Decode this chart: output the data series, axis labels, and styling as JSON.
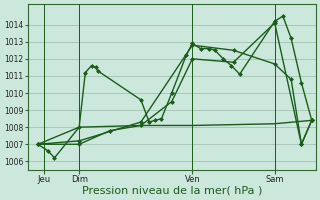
{
  "bg_color": "#cce8dd",
  "grid_color": "#99bbaa",
  "line_color": "#1a5c1a",
  "marker_color": "#1a5c1a",
  "xlabel": "Pression niveau de la mer( hPa )",
  "xlabel_fontsize": 8,
  "ylim": [
    1005.5,
    1015.2
  ],
  "yticks": [
    1006,
    1007,
    1008,
    1009,
    1010,
    1011,
    1012,
    1013,
    1014
  ],
  "xlim": [
    -0.5,
    13.5
  ],
  "day_ticks": [
    0.3,
    2.0,
    7.5,
    11.5
  ],
  "day_labels": [
    "Jeu",
    "Dim",
    "Ven",
    "Sam"
  ],
  "vline_positions": [
    0.3,
    2.0,
    7.5,
    11.5
  ],
  "series1": {
    "x": [
      0.0,
      0.5,
      0.8,
      2.0,
      2.3,
      2.6,
      2.8,
      2.9,
      5.0,
      5.4,
      5.7,
      6.0,
      6.5,
      7.2,
      7.5,
      7.9,
      8.3,
      8.6,
      9.0,
      9.4,
      9.8,
      11.5,
      11.9,
      12.3,
      12.8,
      13.3
    ],
    "y": [
      1007.0,
      1006.6,
      1006.2,
      1008.0,
      1011.2,
      1011.6,
      1011.5,
      1011.3,
      1009.6,
      1008.3,
      1008.4,
      1008.5,
      1010.0,
      1012.2,
      1012.9,
      1012.6,
      1012.6,
      1012.5,
      1012.0,
      1011.6,
      1011.1,
      1014.2,
      1014.5,
      1013.2,
      1010.6,
      1008.4
    ]
  },
  "series2": {
    "x": [
      0.0,
      2.0,
      5.0,
      7.5,
      11.5,
      13.3
    ],
    "y": [
      1007.0,
      1008.0,
      1008.1,
      1008.1,
      1008.2,
      1008.4
    ]
  },
  "series3": {
    "x": [
      0.0,
      2.0,
      3.5,
      5.0,
      6.5,
      7.5,
      9.5,
      11.5,
      12.8,
      13.3
    ],
    "y": [
      1007.0,
      1007.0,
      1007.8,
      1008.1,
      1009.5,
      1012.0,
      1011.8,
      1014.1,
      1007.0,
      1008.4
    ]
  },
  "series4": {
    "x": [
      0.0,
      2.0,
      5.0,
      7.5,
      9.5,
      11.5,
      12.3,
      12.8,
      13.3
    ],
    "y": [
      1007.0,
      1007.2,
      1008.3,
      1012.8,
      1012.5,
      1011.7,
      1010.8,
      1007.0,
      1008.4
    ]
  }
}
